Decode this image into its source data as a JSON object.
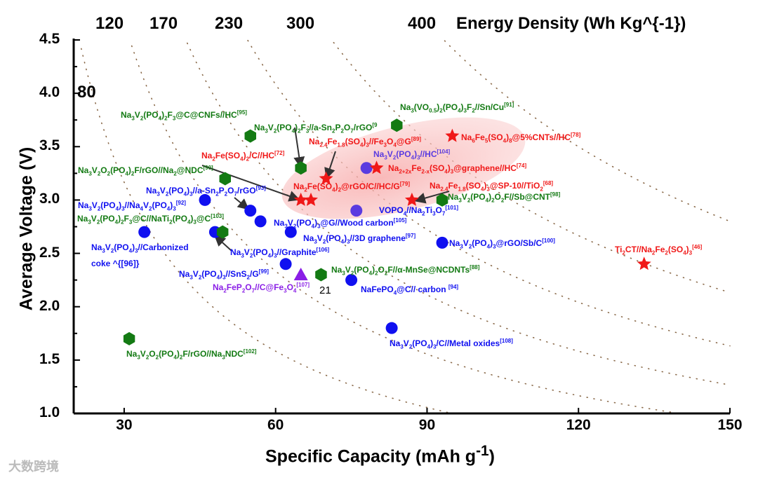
{
  "chart_data": {
    "type": "scatter",
    "title": "",
    "xlabel": "Specific Capacity (mAh g^{-1})",
    "ylabel": "Average Voltage (V)",
    "top_axis_label": "Energy Density (Wh Kg^{-1})",
    "xlim": [
      20,
      150
    ],
    "ylim": [
      1.0,
      4.5
    ],
    "xticks": [
      "30",
      "60",
      "90",
      "120",
      "150"
    ],
    "yticks": [
      "1.0",
      "1.5",
      "2.0",
      "2.5",
      "3.0",
      "3.5",
      "4.0",
      "4.5"
    ],
    "energy_ticks": [
      "120",
      "170",
      "230",
      "300",
      "400"
    ],
    "energy_curve_label": "80",
    "stray_label": "21",
    "colors": {
      "blue": "#1010f0",
      "green": "#137a13",
      "red": "#f01818",
      "purple": "#8a1ee6",
      "violet": "#5a3be0"
    },
    "points": [
      {
        "x": 46,
        "y": 3.0,
        "marker": "circle",
        "color": "blue"
      },
      {
        "x": 55,
        "y": 2.9,
        "marker": "circle",
        "color": "blue"
      },
      {
        "x": 57,
        "y": 2.8,
        "marker": "circle",
        "color": "blue"
      },
      {
        "x": 34,
        "y": 2.7,
        "marker": "circle",
        "color": "blue"
      },
      {
        "x": 48,
        "y": 2.7,
        "marker": "circle",
        "color": "blue"
      },
      {
        "x": 63,
        "y": 2.7,
        "marker": "circle",
        "color": "blue"
      },
      {
        "x": 62,
        "y": 2.4,
        "marker": "circle",
        "color": "blue"
      },
      {
        "x": 75,
        "y": 2.25,
        "marker": "circle",
        "color": "blue"
      },
      {
        "x": 83,
        "y": 1.8,
        "marker": "circle",
        "color": "blue"
      },
      {
        "x": 93,
        "y": 2.6,
        "marker": "circle",
        "color": "blue"
      },
      {
        "x": 78,
        "y": 3.3,
        "marker": "circle",
        "color": "violet"
      },
      {
        "x": 76,
        "y": 2.9,
        "marker": "circle",
        "color": "violet"
      },
      {
        "x": 55,
        "y": 3.6,
        "marker": "hexagon",
        "color": "green"
      },
      {
        "x": 50,
        "y": 3.2,
        "marker": "hexagon",
        "color": "green"
      },
      {
        "x": 65,
        "y": 3.3,
        "marker": "hexagon",
        "color": "green"
      },
      {
        "x": 49.5,
        "y": 2.7,
        "marker": "hexagon",
        "color": "green"
      },
      {
        "x": 69,
        "y": 2.3,
        "marker": "hexagon",
        "color": "green"
      },
      {
        "x": 84,
        "y": 3.7,
        "marker": "hexagon",
        "color": "green"
      },
      {
        "x": 93,
        "y": 3.0,
        "marker": "hexagon",
        "color": "green"
      },
      {
        "x": 31,
        "y": 1.7,
        "marker": "hexagon",
        "color": "green"
      },
      {
        "x": 65,
        "y": 3.0,
        "marker": "star",
        "color": "red"
      },
      {
        "x": 67,
        "y": 3.0,
        "marker": "star",
        "color": "red"
      },
      {
        "x": 70,
        "y": 3.2,
        "marker": "star",
        "color": "red"
      },
      {
        "x": 80,
        "y": 3.3,
        "marker": "star",
        "color": "red"
      },
      {
        "x": 87,
        "y": 3.0,
        "marker": "star",
        "color": "red"
      },
      {
        "x": 95,
        "y": 3.6,
        "marker": "star",
        "color": "red"
      },
      {
        "x": 133,
        "y": 2.4,
        "marker": "star",
        "color": "red"
      },
      {
        "x": 65,
        "y": 2.3,
        "marker": "triangle",
        "color": "purple"
      }
    ],
    "annotations": [
      {
        "text": "Na_{3}V_{2}(PO_{4})_{2}F_{3}@C@CNFs//HC^{[95]}",
        "color": "green"
      },
      {
        "text": "Na_{3}V_{2}(PO_{4})_{2}F_{3}//a-Sn_{2}P_{2}O_{7}/rGO^{[9}",
        "color": "green"
      },
      {
        "text": "Na_{3}(VO_{0.5})_{2}(PO_{4})_{3}F_{2}//Sn/Cu^{[91]}",
        "color": "green"
      },
      {
        "text": "Na_{2.4}Fe_{1.8}(SO_{4})_{3}//Fe_{3}O_{4}@G^{[89]}",
        "color": "red"
      },
      {
        "text": "Na_{6}Fe_{5}(SO_{4})_{8}@5%CNTs//HC^{[78]}",
        "color": "red"
      },
      {
        "text": "Na_{2}Fe(SO_{4})_{2}/C//HC^{[72]}",
        "color": "red"
      },
      {
        "text": "Na_{3}V_{2}(PO_{4})_{3}//HC^{[104]}",
        "color": "violet"
      },
      {
        "text": "Na_{3}V_{2}O_{2}(PO_{4})_{2}F/rGO//Na_{2}@NDC^{[90]}",
        "color": "green"
      },
      {
        "text": "Na_{2+2x}Fe_{2-x}(SO_{4})_{3}@graphene//HC^{[74]}",
        "color": "red"
      },
      {
        "text": "Na_{3}V_{2}(PO_{4})_{3}//a-Sn_{2}P_{2}O_{7}/rGO^{[93]}",
        "color": "blue"
      },
      {
        "text": "Na_{2}Fe(SO_{4})_{2}@rGO/C//HC/G^{[79]}",
        "color": "red"
      },
      {
        "text": "Na_{2.4}Fe_{1.8}(SO_{4})_{3}@SP-10//TiO_{2}^{[68]}",
        "color": "red"
      },
      {
        "text": "Na_{3}V_{2}(PO_{4})_{2}O_{2}F//Sb@CNT^{[98]}",
        "color": "green"
      },
      {
        "text": "Na_{3}V_{2}(PO_{4})_{3}//Na_{4}V_{2}(PO_{4})_{3}^{[92]}",
        "color": "blue"
      },
      {
        "text": "VOPO_{4}//Na_{2}Ti_{3}O_{7}^{[101]}",
        "color": "blue"
      },
      {
        "text": "Na_{3}V_{2}(PO_{4})_{2}F_{3}@C//NaTi_{2}(PO_{4})_{3}@C^{[103]}",
        "color": "green"
      },
      {
        "text": "Na_{3}V_{2}(PO_{4})_{3}@G//Wood carbon^{[105]}",
        "color": "blue"
      },
      {
        "text": "Na_{3}V_{2}(PO_{4})_{3}//3D graphene^{[97]}",
        "color": "blue"
      },
      {
        "text": "Na_{3}V_{2}(PO_{4})_{3}@rGO/Sb/C^{[100]}",
        "color": "blue"
      },
      {
        "text": "Ti_{2}CT//Na_{2}Fe_{2}(SO_{4})_{3}^{[46]}",
        "color": "red"
      },
      {
        "text": "Na_{3}V_{2}(PO_{4})_{3}//Carbonized",
        "color": "blue"
      },
      {
        "text": "coke ^{[96]}",
        "color": "blue"
      },
      {
        "text": "Na_{3}V_{2}(PO_{4})_{3}//Graphite^{[106]}",
        "color": "blue"
      },
      {
        "text": "Na_{3}V_{2}(PO_{4})_{2}O_{2}F//α-MnSe@NCDNTs^{[88]}",
        "color": "green"
      },
      {
        "text": "Na_{3}V_{2}(PO_{4})_{3}//SnS_{2}/G^{[99]}",
        "color": "blue"
      },
      {
        "text": "Na_{2}FeP_{2}O_{7}//C@Fe_{3}O_{4}^{[107]}",
        "color": "purple"
      },
      {
        "text": "NaFePO_{4}@C// carbon ^{[94]}",
        "color": "blue"
      },
      {
        "text": "Na_{3}V_{2}(PO_{4})_{3}/C//Metal oxides^{[108]}",
        "color": "blue"
      },
      {
        "text": "Na_{3}V_{2}O_{2}(PO_{4})_{2}F/rGO//Na_{3}NDC^{[102]}",
        "color": "green"
      }
    ]
  },
  "watermark": "大数跨境"
}
